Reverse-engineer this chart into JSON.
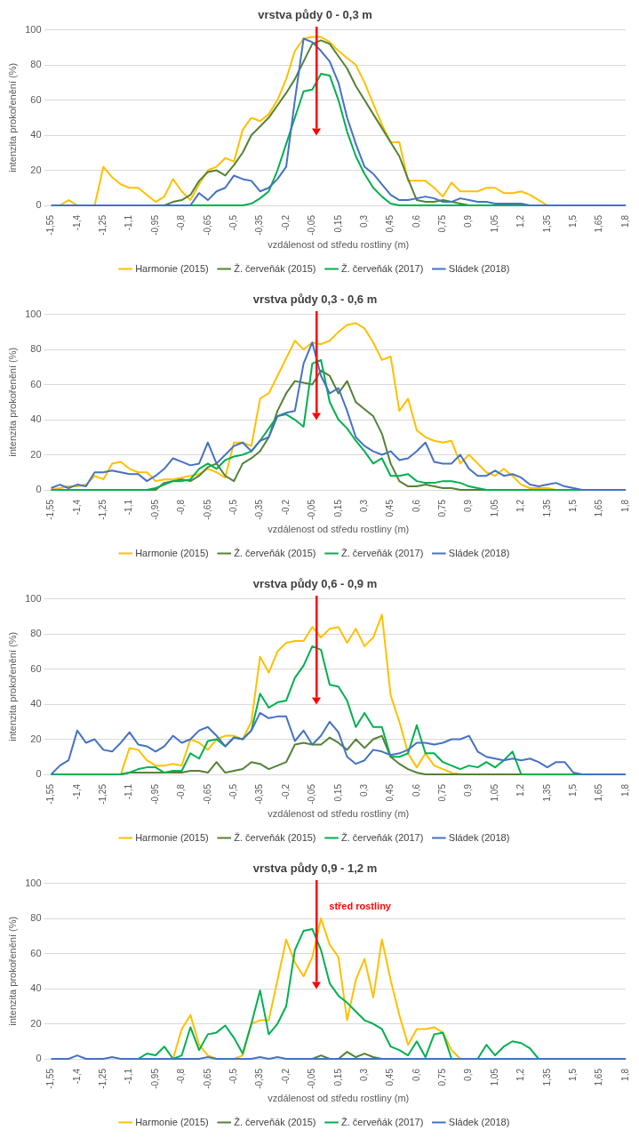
{
  "chart_data": [
    {
      "type": "line",
      "title": "vrstva půdy 0 - 0,3 m",
      "xlabel": "vzdálenost od středu rostliny (m)",
      "ylabel": "intenzita prokořenění (%)",
      "ylim": [
        0,
        100
      ],
      "yticks": [
        0,
        20,
        40,
        60,
        80,
        100
      ],
      "grid": "y",
      "legend": "bottom",
      "marker": "none",
      "categories": [
        "-1,55",
        null,
        null,
        "-1,4",
        null,
        null,
        "-1,25",
        null,
        null,
        "-1,1",
        null,
        null,
        "-0,95",
        null,
        null,
        "-0,8",
        null,
        null,
        "-0,65",
        null,
        null,
        "-0,5",
        null,
        null,
        "-0,35",
        null,
        null,
        "-0,2",
        null,
        null,
        "-0,05",
        null,
        null,
        "0,15",
        null,
        null,
        "0,3",
        null,
        null,
        "0,45",
        null,
        null,
        "0,6",
        null,
        null,
        "0,75",
        null,
        null,
        "0,9",
        null,
        null,
        "1,05",
        null,
        null,
        "1,2",
        null,
        null,
        "1,35",
        null,
        null,
        "1,5",
        null,
        null,
        "1,65",
        null,
        null,
        "1,8"
      ],
      "series": [
        {
          "name": "Harmonie (2015)",
          "color": "#ffc000",
          "values": [
            null,
            0,
            3,
            0,
            null,
            0,
            22,
            16,
            12,
            10,
            10,
            6,
            2,
            5,
            15,
            8,
            3,
            12,
            20,
            22,
            27,
            25,
            43,
            50,
            48,
            52,
            60,
            72,
            88,
            95,
            96,
            96,
            93,
            88,
            84,
            80,
            70,
            58,
            46,
            36,
            36,
            14,
            14,
            14,
            10,
            5,
            13,
            8,
            8,
            8,
            10,
            10,
            7,
            7,
            8,
            6,
            3,
            0,
            null,
            null,
            null,
            null,
            null,
            null,
            null,
            null,
            null
          ]
        },
        {
          "name": "Ž. červeňák (2015)",
          "color": "#548235",
          "values": [
            null,
            null,
            null,
            null,
            null,
            null,
            null,
            null,
            null,
            null,
            null,
            null,
            null,
            0,
            2,
            3,
            6,
            14,
            19,
            20,
            17,
            23,
            30,
            40,
            45,
            50,
            57,
            64,
            72,
            82,
            92,
            94,
            92,
            85,
            78,
            68,
            60,
            52,
            44,
            36,
            28,
            15,
            3,
            2,
            2,
            3,
            2,
            1,
            0,
            null,
            null,
            null,
            null,
            null,
            null,
            null,
            null,
            null,
            null,
            null,
            null,
            null,
            null,
            null,
            null,
            null,
            null
          ]
        },
        {
          "name": "Ž. červeňák (2017)",
          "color": "#00b050",
          "values": [
            null,
            null,
            null,
            null,
            null,
            null,
            null,
            null,
            null,
            null,
            null,
            null,
            null,
            null,
            null,
            null,
            0,
            0,
            0,
            0,
            0,
            0,
            0,
            1,
            4,
            8,
            20,
            35,
            50,
            65,
            66,
            75,
            74,
            60,
            42,
            28,
            18,
            10,
            5,
            1,
            0,
            0,
            0,
            0,
            0,
            0,
            0,
            0,
            0,
            0,
            0,
            0,
            0,
            0,
            0,
            0,
            null,
            null,
            null,
            null,
            null,
            null,
            null,
            null,
            null,
            null,
            null
          ]
        },
        {
          "name": "Sládek (2018)",
          "color": "#4472c4",
          "values": [
            0,
            0,
            0,
            0,
            0,
            0,
            0,
            0,
            0,
            0,
            0,
            0,
            0,
            0,
            0,
            0,
            0,
            7,
            3,
            8,
            10,
            17,
            15,
            14,
            8,
            10,
            15,
            22,
            60,
            95,
            93,
            88,
            82,
            70,
            50,
            35,
            22,
            18,
            12,
            6,
            3,
            3,
            4,
            5,
            4,
            2,
            2,
            4,
            3,
            2,
            2,
            1,
            1,
            1,
            1,
            0,
            0,
            0,
            0,
            0,
            0,
            0,
            0,
            0,
            0,
            0,
            0
          ]
        }
      ]
    },
    {
      "type": "line",
      "title": "vrstva půdy 0,3 - 0,6 m",
      "xlabel": "vzdálenost od středu rostliny (m)",
      "ylabel": "intenzita prokořenění (%)",
      "ylim": [
        0,
        100
      ],
      "yticks": [
        0,
        20,
        40,
        60,
        80,
        100
      ],
      "grid": "y",
      "legend": "bottom",
      "marker": "none",
      "categories": [
        "-1,55",
        null,
        null,
        "-1,4",
        null,
        null,
        "-1,25",
        null,
        null,
        "-1,1",
        null,
        null,
        "-0,95",
        null,
        null,
        "-0,8",
        null,
        null,
        "-0,65",
        null,
        null,
        "-0,5",
        null,
        null,
        "-0,35",
        null,
        null,
        "-0,2",
        null,
        null,
        "-0,05",
        null,
        null,
        "0,15",
        null,
        null,
        "0,3",
        null,
        null,
        "0,45",
        null,
        null,
        "0,6",
        null,
        null,
        "0,75",
        null,
        null,
        "0,9",
        null,
        null,
        "1,05",
        null,
        null,
        "1,2",
        null,
        null,
        "1,35",
        null,
        null,
        "1,5",
        null,
        null,
        "1,65",
        null,
        null,
        "1,8"
      ],
      "series": [
        {
          "name": "Harmonie (2015)",
          "color": "#ffc000",
          "values": [
            0,
            1,
            2,
            2,
            3,
            8,
            6,
            15,
            16,
            12,
            10,
            10,
            5,
            6,
            6,
            7,
            8,
            9,
            12,
            10,
            7,
            27,
            27,
            25,
            52,
            55,
            65,
            75,
            85,
            80,
            84,
            83,
            85,
            90,
            94,
            95,
            92,
            84,
            74,
            76,
            45,
            52,
            34,
            30,
            28,
            27,
            28,
            15,
            20,
            15,
            10,
            8,
            12,
            8,
            3,
            1,
            1,
            1,
            0,
            null,
            null,
            null,
            null,
            null,
            null,
            null,
            null
          ]
        },
        {
          "name": "Ž. červeňák (2015)",
          "color": "#548235",
          "values": [
            null,
            null,
            null,
            null,
            null,
            null,
            null,
            null,
            null,
            null,
            null,
            0,
            0,
            4,
            5,
            6,
            5,
            8,
            13,
            15,
            8,
            5,
            15,
            18,
            22,
            30,
            45,
            55,
            62,
            61,
            60,
            68,
            65,
            55,
            62,
            50,
            46,
            42,
            32,
            15,
            5,
            2,
            2,
            3,
            2,
            1,
            1,
            0,
            0,
            0,
            0,
            null,
            null,
            null,
            null,
            null,
            null,
            null,
            null,
            null,
            null,
            null,
            null,
            null,
            null,
            null,
            null
          ]
        },
        {
          "name": "Ž. červeňák (2017)",
          "color": "#00b050",
          "values": [
            0,
            0,
            0,
            0,
            0,
            0,
            0,
            0,
            0,
            0,
            0,
            0,
            1,
            3,
            5,
            5,
            6,
            12,
            15,
            12,
            17,
            19,
            20,
            22,
            28,
            35,
            42,
            43,
            40,
            36,
            72,
            74,
            50,
            40,
            35,
            28,
            22,
            15,
            18,
            8,
            8,
            9,
            5,
            4,
            4,
            5,
            5,
            4,
            2,
            1,
            0,
            0,
            0,
            0,
            0,
            0,
            0,
            0,
            0,
            0,
            0,
            0,
            null,
            null,
            null,
            null,
            null
          ]
        },
        {
          "name": "Sládek (2018)",
          "color": "#4472c4",
          "values": [
            1,
            3,
            1,
            3,
            2,
            10,
            10,
            11,
            10,
            9,
            9,
            5,
            8,
            12,
            18,
            16,
            14,
            15,
            27,
            15,
            20,
            25,
            27,
            22,
            28,
            30,
            42,
            44,
            45,
            72,
            84,
            65,
            55,
            58,
            45,
            30,
            25,
            22,
            20,
            22,
            17,
            18,
            22,
            27,
            16,
            15,
            15,
            20,
            12,
            8,
            8,
            11,
            8,
            9,
            7,
            3,
            2,
            3,
            4,
            2,
            1,
            0,
            0,
            0,
            0,
            0,
            0
          ]
        }
      ]
    },
    {
      "type": "line",
      "title": "vrstva půdy 0,6 - 0,9 m",
      "xlabel": "vzdálenost od středu rostliny (m)",
      "ylabel": "intenzita prokořenění (%)",
      "ylim": [
        0,
        100
      ],
      "yticks": [
        0,
        20,
        40,
        60,
        80,
        100
      ],
      "grid": "y",
      "legend": "bottom",
      "marker": "none",
      "categories": [
        "-1,55",
        null,
        null,
        "-1,4",
        null,
        null,
        "-1,25",
        null,
        null,
        "-1,1",
        null,
        null,
        "-0,95",
        null,
        null,
        "-0,8",
        null,
        null,
        "-0,65",
        null,
        null,
        "-0,5",
        null,
        null,
        "-0,35",
        null,
        null,
        "-0,2",
        null,
        null,
        "-0,05",
        null,
        null,
        "0,15",
        null,
        null,
        "0,3",
        null,
        null,
        "0,45",
        null,
        null,
        "0,6",
        null,
        null,
        "0,75",
        null,
        null,
        "0,9",
        null,
        null,
        "1,05",
        null,
        null,
        "1,2",
        null,
        null,
        "1,35",
        null,
        null,
        "1,5",
        null,
        null,
        "1,65",
        null,
        null,
        "1,8"
      ],
      "series": [
        {
          "name": "Harmonie (2015)",
          "color": "#ffc000",
          "values": [
            null,
            null,
            null,
            null,
            null,
            null,
            null,
            null,
            0,
            15,
            14,
            8,
            5,
            5,
            6,
            5,
            20,
            18,
            14,
            20,
            22,
            22,
            20,
            30,
            67,
            58,
            70,
            75,
            76,
            76,
            84,
            78,
            83,
            84,
            75,
            83,
            73,
            78,
            91,
            45,
            30,
            12,
            4,
            12,
            5,
            3,
            1,
            0,
            null,
            null,
            null,
            null,
            null,
            null,
            null,
            null,
            null,
            null,
            null,
            null,
            null,
            null,
            null,
            null,
            null,
            null,
            null
          ]
        },
        {
          "name": "Ž. červeňák (2015)",
          "color": "#548235",
          "values": [
            null,
            null,
            null,
            null,
            null,
            null,
            null,
            null,
            0,
            1,
            1,
            1,
            1,
            1,
            1,
            1,
            2,
            2,
            1,
            7,
            1,
            2,
            3,
            7,
            6,
            3,
            5,
            7,
            17,
            18,
            17,
            17,
            21,
            18,
            14,
            20,
            15,
            20,
            22,
            10,
            6,
            3,
            1,
            0,
            0,
            0,
            0,
            0,
            0,
            0,
            0,
            0,
            0,
            0,
            0,
            null,
            null,
            null,
            null,
            null,
            null,
            null,
            null,
            null,
            null,
            null,
            null
          ]
        },
        {
          "name": "Ž. červeňák (2017)",
          "color": "#00b050",
          "values": [
            0,
            0,
            0,
            0,
            0,
            0,
            0,
            0,
            0,
            1,
            3,
            4,
            4,
            1,
            2,
            2,
            12,
            9,
            19,
            20,
            16,
            21,
            20,
            25,
            46,
            38,
            41,
            42,
            55,
            62,
            73,
            71,
            51,
            50,
            42,
            27,
            35,
            27,
            27,
            10,
            10,
            12,
            28,
            12,
            12,
            7,
            5,
            3,
            5,
            4,
            7,
            4,
            8,
            13,
            0,
            0,
            0,
            0,
            0,
            0,
            0,
            0,
            null,
            null,
            null,
            null,
            null
          ]
        },
        {
          "name": "Sládek (2018)",
          "color": "#4472c4",
          "values": [
            0,
            5,
            8,
            25,
            18,
            20,
            14,
            13,
            18,
            24,
            17,
            16,
            13,
            16,
            22,
            18,
            20,
            25,
            27,
            22,
            16,
            21,
            20,
            25,
            35,
            32,
            33,
            33,
            19,
            25,
            17,
            22,
            30,
            24,
            10,
            6,
            8,
            14,
            13,
            11,
            12,
            14,
            18,
            18,
            17,
            18,
            20,
            20,
            22,
            13,
            10,
            9,
            8,
            9,
            8,
            9,
            7,
            4,
            7,
            7,
            1,
            0,
            0,
            0,
            0,
            0,
            0
          ]
        }
      ]
    },
    {
      "type": "line",
      "title": "vrstva půdy 0,9 - 1,2 m",
      "xlabel": "vzdálenost od středu rostliny (m)",
      "ylabel": "intenzita prokořenění (%)",
      "ylim": [
        0,
        100
      ],
      "yticks": [
        0,
        20,
        40,
        60,
        80,
        100
      ],
      "grid": "y",
      "legend": "bottom",
      "marker": "none",
      "annotations": [
        "střed rostliny"
      ],
      "categories": [
        "-1,55",
        null,
        null,
        "-1,4",
        null,
        null,
        "-1,25",
        null,
        null,
        "-1,1",
        null,
        null,
        "-0,95",
        null,
        null,
        "-0,8",
        null,
        null,
        "-0,65",
        null,
        null,
        "-0,5",
        null,
        null,
        "-0,35",
        null,
        null,
        "-0,2",
        null,
        null,
        "-0,05",
        null,
        null,
        "0,15",
        null,
        null,
        "0,3",
        null,
        null,
        "0,45",
        null,
        null,
        "0,6",
        null,
        null,
        "0,75",
        null,
        null,
        "0,9",
        null,
        null,
        "1,05",
        null,
        null,
        "1,2",
        null,
        null,
        "1,35",
        null,
        null,
        "1,5",
        null,
        null,
        "1,65",
        null,
        null,
        "1,8"
      ],
      "series": [
        {
          "name": "Harmonie (2015)",
          "color": "#ffc000",
          "values": [
            null,
            null,
            null,
            null,
            null,
            null,
            null,
            null,
            null,
            null,
            null,
            null,
            null,
            null,
            0,
            17,
            25,
            8,
            2,
            0,
            null,
            0,
            2,
            20,
            22,
            22,
            45,
            68,
            55,
            47,
            58,
            80,
            65,
            58,
            22,
            45,
            57,
            35,
            68,
            45,
            25,
            8,
            17,
            17,
            18,
            15,
            5,
            0,
            null,
            null,
            null,
            null,
            null,
            null,
            null,
            null,
            null,
            null,
            null,
            null,
            null,
            null,
            null,
            null,
            null,
            null,
            null
          ]
        },
        {
          "name": "Ž. červeňák (2015)",
          "color": "#548235",
          "values": [
            null,
            null,
            null,
            null,
            null,
            null,
            null,
            null,
            null,
            null,
            null,
            null,
            null,
            null,
            null,
            null,
            null,
            null,
            null,
            null,
            null,
            null,
            null,
            null,
            null,
            null,
            null,
            null,
            null,
            null,
            0,
            2,
            0,
            0,
            4,
            1,
            3,
            1,
            0,
            null,
            null,
            null,
            null,
            null,
            null,
            null,
            null,
            null,
            null,
            null,
            null,
            null,
            null,
            null,
            null,
            null,
            null,
            null,
            null,
            null,
            null,
            null,
            null,
            null,
            null,
            null,
            null
          ]
        },
        {
          "name": "Ž. červeňák (2017)",
          "color": "#00b050",
          "values": [
            null,
            null,
            null,
            null,
            null,
            null,
            null,
            null,
            null,
            null,
            0,
            3,
            2,
            7,
            0,
            2,
            18,
            5,
            14,
            15,
            19,
            12,
            3,
            20,
            39,
            14,
            20,
            30,
            62,
            73,
            74,
            62,
            43,
            36,
            32,
            27,
            22,
            20,
            17,
            7,
            5,
            2,
            10,
            1,
            14,
            15,
            0,
            null,
            null,
            0,
            8,
            2,
            7,
            10,
            9,
            6,
            0,
            null,
            null,
            null,
            null,
            null,
            null,
            null,
            null,
            null,
            null
          ]
        },
        {
          "name": "Sládek (2018)",
          "color": "#4472c4",
          "values": [
            0,
            0,
            0,
            2,
            0,
            0,
            0,
            1,
            0,
            0,
            0,
            0,
            0,
            0,
            0,
            0,
            0,
            0,
            1,
            0,
            0,
            0,
            0,
            0,
            1,
            0,
            1,
            0,
            0,
            0,
            0,
            0,
            0,
            0,
            0,
            0,
            0,
            0,
            0,
            0,
            0,
            0,
            0,
            0,
            0,
            0,
            0,
            0,
            0,
            0,
            0,
            0,
            0,
            0,
            0,
            0,
            0,
            0,
            0,
            0,
            0,
            0,
            0,
            0,
            0,
            0,
            0
          ]
        }
      ]
    }
  ]
}
